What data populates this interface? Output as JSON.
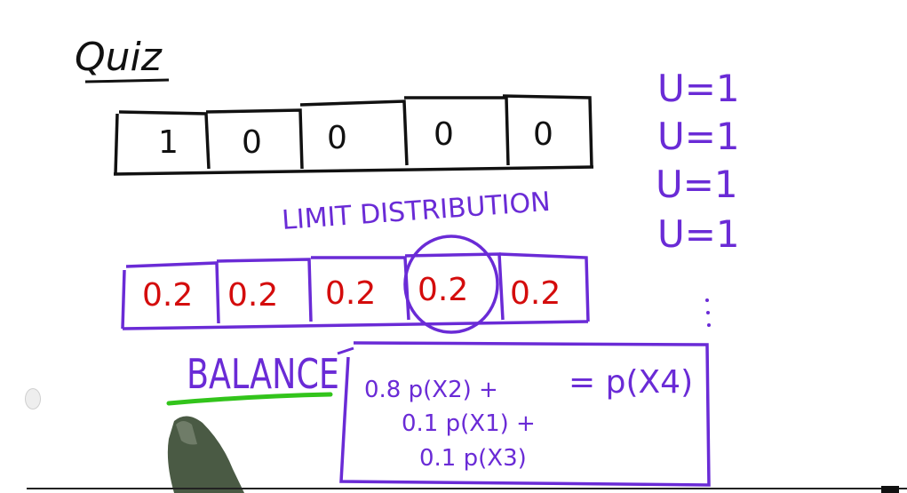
{
  "title": "Quiz",
  "prior_cells": [
    "1",
    "0",
    "0",
    "0",
    "0"
  ],
  "limit_label": "LIMIT DISTRIBUTION",
  "limit_cells": [
    "0.2",
    "0.2",
    "0.2",
    "0.2",
    "0.2"
  ],
  "highlighted_cell_index": 3,
  "u_values": [
    "U=1",
    "U=1",
    "U=1",
    "U=1"
  ],
  "balance": {
    "label": "BALANCE",
    "terms": [
      "0.8 p(X2) +",
      "0.1 p(X1) +",
      "0.1 p(X3)"
    ],
    "result": "= p(X4)"
  },
  "colors": {
    "ink": "#111111",
    "purple": "#6a2bd6",
    "red": "#d40c0c",
    "green": "#32c41b",
    "hand": "#4a5a44"
  }
}
